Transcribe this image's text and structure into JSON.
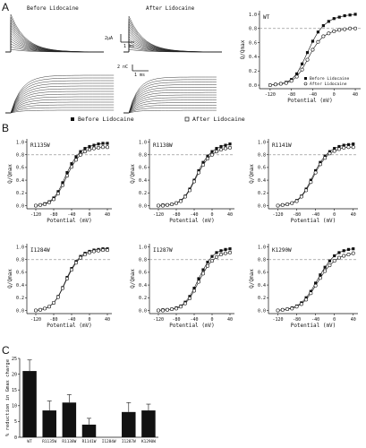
{
  "panels": {
    "a": "A",
    "b": "B",
    "c": "C"
  },
  "traces": {
    "before_title": "Before Lidocaine",
    "after_title": "After Lidocaine",
    "scale_top_current": "2µA",
    "scale_top_time": "1 ms",
    "scale_bottom_current": "2 nC",
    "scale_bottom_time": "1 ms"
  },
  "legend_b": {
    "before": "Before Lidocaine",
    "after": "After Lidocaine"
  },
  "chart_data": [
    {
      "type": "scatter",
      "id": "wt",
      "label": "WT",
      "legend": [
        "Before Lidocaine",
        "After Lidocaine"
      ],
      "xlabel": "Potential (mV)",
      "ylabel": "Q/Qmax",
      "xlim": [
        -140,
        50
      ],
      "ylim": [
        -0.05,
        1.05
      ],
      "xticks": [
        -120,
        -80,
        -40,
        0,
        40
      ],
      "yticks": [
        0.0,
        0.2,
        0.4,
        0.6,
        0.8,
        1.0
      ],
      "reference_line": 0.8,
      "x": [
        -120,
        -110,
        -100,
        -90,
        -80,
        -70,
        -60,
        -50,
        -40,
        -30,
        -20,
        -10,
        0,
        10,
        20,
        30,
        40
      ],
      "series": [
        {
          "name": "Before Lidocaine",
          "values": [
            0.0,
            0.01,
            0.02,
            0.04,
            0.08,
            0.16,
            0.3,
            0.46,
            0.62,
            0.75,
            0.84,
            0.9,
            0.94,
            0.96,
            0.98,
            0.99,
            1.0
          ]
        },
        {
          "name": "After Lidocaine",
          "values": [
            0.0,
            0.01,
            0.02,
            0.03,
            0.06,
            0.12,
            0.22,
            0.36,
            0.5,
            0.61,
            0.69,
            0.73,
            0.76,
            0.78,
            0.79,
            0.8,
            0.8
          ]
        }
      ]
    },
    {
      "type": "scatter",
      "id": "r1135w",
      "label": "R1135W",
      "xlabel": "Potential (mV)",
      "ylabel": "Q/Qmax",
      "xlim": [
        -140,
        50
      ],
      "ylim": [
        -0.05,
        1.05
      ],
      "xticks": [
        -120,
        -80,
        -40,
        0,
        40
      ],
      "yticks": [
        0.0,
        0.2,
        0.4,
        0.6,
        0.8,
        1.0
      ],
      "reference_line": 0.8,
      "x": [
        -120,
        -110,
        -100,
        -90,
        -80,
        -70,
        -60,
        -50,
        -40,
        -30,
        -20,
        -10,
        0,
        10,
        20,
        30,
        40
      ],
      "series": [
        {
          "name": "Before Lidocaine",
          "values": [
            0.0,
            0.01,
            0.03,
            0.06,
            0.12,
            0.22,
            0.36,
            0.52,
            0.66,
            0.77,
            0.85,
            0.9,
            0.93,
            0.95,
            0.97,
            0.98,
            0.98
          ]
        },
        {
          "name": "After Lidocaine",
          "values": [
            0.0,
            0.01,
            0.02,
            0.05,
            0.1,
            0.19,
            0.32,
            0.47,
            0.61,
            0.72,
            0.8,
            0.85,
            0.88,
            0.9,
            0.91,
            0.92,
            0.92
          ]
        }
      ]
    },
    {
      "type": "scatter",
      "id": "r1138w",
      "label": "R1138W",
      "xlabel": "Potential (mV)",
      "ylabel": "Q/Qmax",
      "xlim": [
        -140,
        50
      ],
      "ylim": [
        -0.05,
        1.05
      ],
      "xticks": [
        -120,
        -80,
        -40,
        0,
        40
      ],
      "yticks": [
        0.0,
        0.2,
        0.4,
        0.6,
        0.8,
        1.0
      ],
      "reference_line": 0.8,
      "x": [
        -120,
        -110,
        -100,
        -90,
        -80,
        -70,
        -60,
        -50,
        -40,
        -30,
        -20,
        -10,
        0,
        10,
        20,
        30,
        40
      ],
      "series": [
        {
          "name": "Before Lidocaine",
          "values": [
            0.0,
            0.01,
            0.01,
            0.02,
            0.04,
            0.08,
            0.15,
            0.26,
            0.4,
            0.55,
            0.68,
            0.78,
            0.85,
            0.9,
            0.93,
            0.95,
            0.97
          ]
        },
        {
          "name": "After Lidocaine",
          "values": [
            0.0,
            0.0,
            0.01,
            0.02,
            0.04,
            0.07,
            0.14,
            0.24,
            0.38,
            0.52,
            0.64,
            0.74,
            0.8,
            0.85,
            0.88,
            0.9,
            0.91
          ]
        }
      ]
    },
    {
      "type": "scatter",
      "id": "r1141w",
      "label": "R1141W",
      "xlabel": "Potential (mV)",
      "ylabel": "Q/Qmax",
      "xlim": [
        -140,
        50
      ],
      "ylim": [
        -0.05,
        1.05
      ],
      "xticks": [
        -120,
        -80,
        -40,
        0,
        40
      ],
      "yticks": [
        0.0,
        0.2,
        0.4,
        0.6,
        0.8,
        1.0
      ],
      "reference_line": 0.8,
      "x": [
        -120,
        -110,
        -100,
        -90,
        -80,
        -70,
        -60,
        -50,
        -40,
        -30,
        -20,
        -10,
        0,
        10,
        20,
        30,
        40
      ],
      "series": [
        {
          "name": "Before Lidocaine",
          "values": [
            0.0,
            0.01,
            0.02,
            0.04,
            0.08,
            0.15,
            0.26,
            0.4,
            0.55,
            0.68,
            0.78,
            0.85,
            0.9,
            0.93,
            0.95,
            0.96,
            0.97
          ]
        },
        {
          "name": "After Lidocaine",
          "values": [
            0.0,
            0.01,
            0.02,
            0.04,
            0.07,
            0.14,
            0.24,
            0.37,
            0.52,
            0.65,
            0.75,
            0.82,
            0.86,
            0.89,
            0.91,
            0.92,
            0.92
          ]
        }
      ]
    },
    {
      "type": "scatter",
      "id": "i1284w",
      "label": "I1284W",
      "xlabel": "Potential (mV)",
      "ylabel": "Q/Qmax",
      "xlim": [
        -140,
        50
      ],
      "ylim": [
        -0.05,
        1.05
      ],
      "xticks": [
        -120,
        -80,
        -40,
        0,
        40
      ],
      "yticks": [
        0.0,
        0.2,
        0.4,
        0.6,
        0.8,
        1.0
      ],
      "reference_line": 0.8,
      "x": [
        -120,
        -110,
        -100,
        -90,
        -80,
        -70,
        -60,
        -50,
        -40,
        -30,
        -20,
        -10,
        0,
        10,
        20,
        30,
        40
      ],
      "series": [
        {
          "name": "Before Lidocaine",
          "values": [
            0.0,
            0.01,
            0.03,
            0.06,
            0.12,
            0.22,
            0.36,
            0.52,
            0.66,
            0.77,
            0.85,
            0.9,
            0.93,
            0.95,
            0.96,
            0.97,
            0.97
          ]
        },
        {
          "name": "After Lidocaine",
          "values": [
            0.0,
            0.01,
            0.03,
            0.06,
            0.12,
            0.21,
            0.35,
            0.5,
            0.64,
            0.75,
            0.83,
            0.88,
            0.91,
            0.93,
            0.94,
            0.95,
            0.95
          ]
        }
      ]
    },
    {
      "type": "scatter",
      "id": "i1287w",
      "label": "I1287W",
      "xlabel": "Potential (mV)",
      "ylabel": "Q/Qmax",
      "xlim": [
        -140,
        50
      ],
      "ylim": [
        -0.05,
        1.05
      ],
      "xticks": [
        -120,
        -80,
        -40,
        0,
        40
      ],
      "yticks": [
        0.0,
        0.2,
        0.4,
        0.6,
        0.8,
        1.0
      ],
      "reference_line": 0.8,
      "x": [
        -120,
        -110,
        -100,
        -90,
        -80,
        -70,
        -60,
        -50,
        -40,
        -30,
        -20,
        -10,
        0,
        10,
        20,
        30,
        40
      ],
      "series": [
        {
          "name": "Before Lidocaine",
          "values": [
            0.0,
            0.01,
            0.01,
            0.02,
            0.04,
            0.07,
            0.13,
            0.22,
            0.35,
            0.5,
            0.64,
            0.76,
            0.85,
            0.91,
            0.94,
            0.96,
            0.97
          ]
        },
        {
          "name": "After Lidocaine",
          "values": [
            0.0,
            0.0,
            0.01,
            0.02,
            0.03,
            0.06,
            0.11,
            0.19,
            0.31,
            0.45,
            0.58,
            0.7,
            0.78,
            0.84,
            0.88,
            0.9,
            0.91
          ]
        }
      ]
    },
    {
      "type": "scatter",
      "id": "k1290w",
      "label": "K1290W",
      "xlabel": "Potential (mV)",
      "ylabel": "Q/Qmax",
      "xlim": [
        -140,
        50
      ],
      "ylim": [
        -0.05,
        1.05
      ],
      "xticks": [
        -120,
        -80,
        -40,
        0,
        40
      ],
      "yticks": [
        0.0,
        0.2,
        0.4,
        0.6,
        0.8,
        1.0
      ],
      "reference_line": 0.8,
      "x": [
        -120,
        -110,
        -100,
        -90,
        -80,
        -70,
        -60,
        -50,
        -40,
        -30,
        -20,
        -10,
        0,
        10,
        20,
        30,
        40
      ],
      "series": [
        {
          "name": "Before Lidocaine",
          "values": [
            0.0,
            0.01,
            0.02,
            0.04,
            0.07,
            0.12,
            0.2,
            0.3,
            0.43,
            0.56,
            0.68,
            0.78,
            0.86,
            0.91,
            0.94,
            0.96,
            0.97
          ]
        },
        {
          "name": "After Lidocaine",
          "values": [
            0.0,
            0.01,
            0.02,
            0.03,
            0.06,
            0.1,
            0.17,
            0.27,
            0.39,
            0.51,
            0.62,
            0.71,
            0.78,
            0.83,
            0.86,
            0.88,
            0.9
          ]
        }
      ]
    },
    {
      "type": "bar",
      "id": "reduction",
      "ylabel": "% reduction in Gmax charge",
      "ylim": [
        0,
        25
      ],
      "yticks": [
        0,
        5,
        10,
        15,
        20,
        25
      ],
      "categories": [
        "WT",
        "R1135W",
        "R1138W",
        "R1141W",
        "I1284W",
        "I1287W",
        "K1290W"
      ],
      "values": [
        21,
        8.5,
        11,
        4,
        0,
        8,
        8.5
      ],
      "errors": [
        3.5,
        3,
        2.5,
        2,
        0,
        3,
        2
      ]
    }
  ]
}
